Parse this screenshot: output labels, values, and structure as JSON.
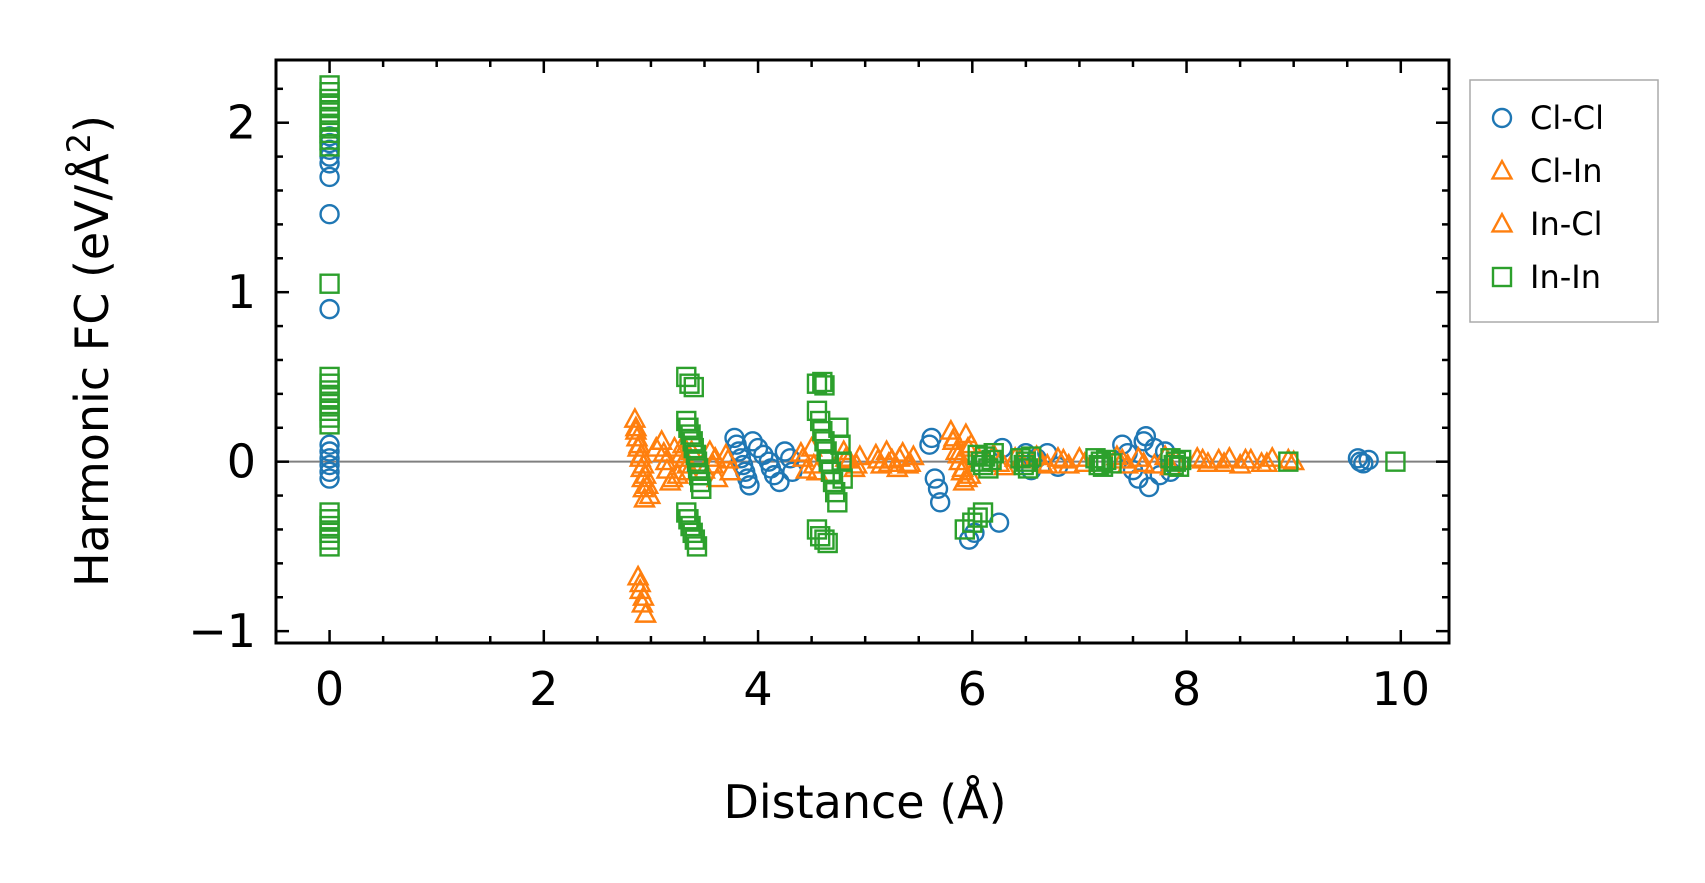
{
  "chart_data": {
    "type": "scatter",
    "title": "",
    "xlabel": "Distance (Å)",
    "ylabel_main": "Harmonic FC (eV/Å",
    "ylabel_sup": "2",
    "ylabel_close": ")",
    "xlim": [
      -0.5,
      10.45
    ],
    "ylim": [
      -1.07,
      2.37
    ],
    "xticks": [
      0,
      2,
      4,
      6,
      8,
      10
    ],
    "xtick_labels": [
      "0",
      "2",
      "4",
      "6",
      "8",
      "10"
    ],
    "yticks": [
      -1,
      0,
      1,
      2
    ],
    "ytick_labels": [
      "−1",
      "0",
      "1",
      "2"
    ],
    "zero_line": true,
    "legend_position": "outside-right-top",
    "series": [
      {
        "name": "Cl-Cl",
        "marker": "circle",
        "color": "#1f77b4",
        "points": [
          [
            0,
            1.92
          ],
          [
            0,
            1.88
          ],
          [
            0,
            1.84
          ],
          [
            0,
            1.8
          ],
          [
            0,
            1.76
          ],
          [
            0,
            1.68
          ],
          [
            0,
            1.46
          ],
          [
            0,
            0.9
          ],
          [
            0,
            0.1
          ],
          [
            0,
            0.06
          ],
          [
            0,
            0.02
          ],
          [
            0,
            -0.02
          ],
          [
            0,
            -0.06
          ],
          [
            0,
            -0.1
          ],
          [
            3.78,
            0.14
          ],
          [
            3.8,
            0.1
          ],
          [
            3.82,
            0.06
          ],
          [
            3.84,
            0.02
          ],
          [
            3.86,
            -0.02
          ],
          [
            3.88,
            -0.06
          ],
          [
            3.9,
            -0.1
          ],
          [
            3.92,
            -0.14
          ],
          [
            3.95,
            0.12
          ],
          [
            4.0,
            0.08
          ],
          [
            4.05,
            0.04
          ],
          [
            4.1,
            0.0
          ],
          [
            4.12,
            -0.04
          ],
          [
            4.15,
            -0.08
          ],
          [
            4.2,
            -0.12
          ],
          [
            4.25,
            0.06
          ],
          [
            4.3,
            0.02
          ],
          [
            4.32,
            -0.06
          ],
          [
            5.6,
            0.1
          ],
          [
            5.62,
            0.14
          ],
          [
            5.65,
            -0.1
          ],
          [
            5.68,
            -0.16
          ],
          [
            5.7,
            -0.24
          ],
          [
            5.97,
            -0.46
          ],
          [
            6.02,
            -0.42
          ],
          [
            6.25,
            -0.36
          ],
          [
            6.28,
            0.08
          ],
          [
            6.5,
            0.05
          ],
          [
            6.55,
            -0.05
          ],
          [
            6.6,
            0.02
          ],
          [
            6.7,
            0.05
          ],
          [
            6.8,
            -0.03
          ],
          [
            7.4,
            0.1
          ],
          [
            7.45,
            0.05
          ],
          [
            7.5,
            -0.05
          ],
          [
            7.55,
            -0.1
          ],
          [
            7.6,
            0.12
          ],
          [
            7.62,
            0.15
          ],
          [
            7.65,
            -0.15
          ],
          [
            7.7,
            0.08
          ],
          [
            7.75,
            -0.08
          ],
          [
            7.8,
            0.06
          ],
          [
            7.85,
            -0.06
          ],
          [
            9.6,
            0.02
          ],
          [
            9.62,
            0.0
          ],
          [
            9.65,
            -0.01
          ],
          [
            9.7,
            0.01
          ]
        ]
      },
      {
        "name": "Cl-In",
        "marker": "triangle",
        "color": "#ff7f0e",
        "points": [
          [
            2.85,
            0.25
          ],
          [
            2.86,
            0.2
          ],
          [
            2.87,
            0.14
          ],
          [
            2.88,
            0.08
          ],
          [
            2.9,
            0.02
          ],
          [
            2.91,
            -0.04
          ],
          [
            2.92,
            -0.1
          ],
          [
            2.93,
            -0.16
          ],
          [
            2.94,
            -0.22
          ],
          [
            2.88,
            -0.68
          ],
          [
            2.9,
            -0.76
          ],
          [
            2.92,
            -0.84
          ],
          [
            2.95,
            -0.9
          ],
          [
            3.1,
            0.12
          ],
          [
            3.12,
            0.05
          ],
          [
            3.15,
            -0.05
          ],
          [
            3.18,
            -0.12
          ],
          [
            3.22,
            0.08
          ],
          [
            3.25,
            -0.08
          ],
          [
            3.3,
            0.1
          ],
          [
            3.32,
            0.02
          ],
          [
            3.35,
            -0.06
          ],
          [
            3.55,
            0.06
          ],
          [
            3.58,
            -0.02
          ],
          [
            3.62,
            -0.1
          ],
          [
            3.7,
            0.04
          ],
          [
            3.74,
            -0.06
          ],
          [
            4.4,
            0.05
          ],
          [
            4.45,
            -0.05
          ],
          [
            4.5,
            0.08
          ],
          [
            4.55,
            -0.06
          ],
          [
            4.8,
            0.06
          ],
          [
            4.85,
            0.01
          ],
          [
            4.9,
            -0.04
          ],
          [
            4.95,
            0.03
          ],
          [
            5.1,
            0.04
          ],
          [
            5.15,
            -0.02
          ],
          [
            5.2,
            0.06
          ],
          [
            5.25,
            0.01
          ],
          [
            5.3,
            -0.04
          ],
          [
            5.35,
            0.05
          ],
          [
            5.4,
            -0.02
          ],
          [
            5.45,
            0.03
          ],
          [
            5.8,
            0.18
          ],
          [
            5.82,
            0.12
          ],
          [
            5.85,
            0.06
          ],
          [
            5.88,
            0.0
          ],
          [
            5.9,
            -0.06
          ],
          [
            5.92,
            -0.12
          ],
          [
            5.94,
            0.16
          ],
          [
            5.96,
            0.08
          ],
          [
            5.98,
            -0.08
          ],
          [
            6.2,
            0.04
          ],
          [
            6.3,
            -0.03
          ],
          [
            6.4,
            0.02
          ],
          [
            6.6,
            0.03
          ],
          [
            6.7,
            -0.02
          ],
          [
            6.8,
            0.02
          ],
          [
            6.9,
            -0.02
          ],
          [
            7.0,
            0.02
          ],
          [
            7.35,
            0.03
          ],
          [
            7.45,
            -0.02
          ],
          [
            7.55,
            0.02
          ],
          [
            7.7,
            -0.02
          ],
          [
            7.8,
            0.03
          ],
          [
            7.85,
            -0.03
          ],
          [
            8.1,
            0.02
          ],
          [
            8.2,
            -0.01
          ],
          [
            8.3,
            0.01
          ],
          [
            8.4,
            0.02
          ],
          [
            8.5,
            -0.02
          ],
          [
            8.6,
            0.01
          ],
          [
            8.7,
            -0.01
          ],
          [
            8.8,
            0.02
          ],
          [
            9.0,
            0.0
          ]
        ]
      },
      {
        "name": "In-Cl",
        "marker": "triangle",
        "color": "#ff7f0e",
        "points": [
          [
            2.86,
            0.18
          ],
          [
            2.89,
            0.1
          ],
          [
            2.91,
            0.04
          ],
          [
            2.93,
            -0.02
          ],
          [
            2.95,
            -0.08
          ],
          [
            2.97,
            -0.14
          ],
          [
            2.99,
            -0.2
          ],
          [
            2.9,
            -0.72
          ],
          [
            2.93,
            -0.8
          ],
          [
            3.05,
            0.08
          ],
          [
            3.14,
            0.0
          ],
          [
            3.2,
            -0.1
          ],
          [
            3.28,
            0.04
          ],
          [
            3.34,
            -0.02
          ],
          [
            3.38,
            0.06
          ],
          [
            3.5,
            -0.05
          ],
          [
            3.6,
            0.02
          ],
          [
            3.72,
            0.01
          ],
          [
            4.42,
            0.02
          ],
          [
            4.52,
            -0.02
          ],
          [
            4.82,
            0.02
          ],
          [
            4.92,
            -0.02
          ],
          [
            5.12,
            0.01
          ],
          [
            5.22,
            -0.01
          ],
          [
            5.32,
            0.02
          ],
          [
            5.42,
            -0.01
          ],
          [
            5.83,
            0.14
          ],
          [
            5.87,
            0.04
          ],
          [
            5.91,
            -0.04
          ],
          [
            5.95,
            -0.1
          ],
          [
            5.99,
            0.1
          ],
          [
            6.25,
            -0.01
          ],
          [
            6.45,
            0.01
          ],
          [
            6.65,
            -0.01
          ],
          [
            6.85,
            0.01
          ],
          [
            7.05,
            -0.01
          ],
          [
            7.4,
            0.01
          ],
          [
            7.6,
            -0.01
          ],
          [
            7.9,
            0.01
          ],
          [
            8.15,
            0.01
          ],
          [
            8.35,
            -0.01
          ],
          [
            8.55,
            0.01
          ],
          [
            8.75,
            -0.01
          ],
          [
            8.95,
            0.01
          ]
        ]
      },
      {
        "name": "In-In",
        "marker": "square",
        "color": "#2ca02c",
        "points": [
          [
            0,
            2.22
          ],
          [
            0,
            2.18
          ],
          [
            0,
            2.14
          ],
          [
            0,
            2.1
          ],
          [
            0,
            2.06
          ],
          [
            0,
            2.02
          ],
          [
            0,
            1.98
          ],
          [
            0,
            1.94
          ],
          [
            0,
            1.9
          ],
          [
            0,
            1.86
          ],
          [
            0,
            1.05
          ],
          [
            0,
            0.5
          ],
          [
            0,
            0.46
          ],
          [
            0,
            0.42
          ],
          [
            0,
            0.38
          ],
          [
            0,
            0.34
          ],
          [
            0,
            0.3
          ],
          [
            0,
            0.26
          ],
          [
            0,
            0.22
          ],
          [
            0,
            -0.3
          ],
          [
            0,
            -0.34
          ],
          [
            0,
            -0.38
          ],
          [
            0,
            -0.42
          ],
          [
            0,
            -0.46
          ],
          [
            0,
            -0.5
          ],
          [
            3.33,
            0.5
          ],
          [
            3.36,
            0.46
          ],
          [
            3.4,
            0.44
          ],
          [
            3.33,
            0.24
          ],
          [
            3.35,
            0.2
          ],
          [
            3.37,
            0.16
          ],
          [
            3.39,
            0.12
          ],
          [
            3.4,
            0.08
          ],
          [
            3.42,
            0.04
          ],
          [
            3.43,
            0.0
          ],
          [
            3.44,
            -0.04
          ],
          [
            3.45,
            -0.08
          ],
          [
            3.46,
            -0.12
          ],
          [
            3.47,
            -0.16
          ],
          [
            3.33,
            -0.3
          ],
          [
            3.35,
            -0.34
          ],
          [
            3.37,
            -0.38
          ],
          [
            3.39,
            -0.42
          ],
          [
            3.41,
            -0.46
          ],
          [
            3.43,
            -0.5
          ],
          [
            4.55,
            0.46
          ],
          [
            4.6,
            0.47
          ],
          [
            4.62,
            0.45
          ],
          [
            4.55,
            0.3
          ],
          [
            4.58,
            0.24
          ],
          [
            4.6,
            0.18
          ],
          [
            4.62,
            0.12
          ],
          [
            4.64,
            0.06
          ],
          [
            4.66,
            0.0
          ],
          [
            4.68,
            -0.06
          ],
          [
            4.7,
            -0.12
          ],
          [
            4.72,
            -0.18
          ],
          [
            4.74,
            -0.24
          ],
          [
            4.55,
            -0.4
          ],
          [
            4.58,
            -0.44
          ],
          [
            4.62,
            -0.46
          ],
          [
            4.65,
            -0.48
          ],
          [
            4.75,
            0.2
          ],
          [
            4.77,
            0.1
          ],
          [
            4.78,
            0.0
          ],
          [
            4.79,
            -0.1
          ],
          [
            5.93,
            -0.4
          ],
          [
            6.0,
            -0.36
          ],
          [
            6.05,
            -0.33
          ],
          [
            6.1,
            -0.3
          ],
          [
            6.05,
            0.04
          ],
          [
            6.08,
            0.0
          ],
          [
            6.1,
            -0.02
          ],
          [
            6.12,
            0.03
          ],
          [
            6.15,
            -0.04
          ],
          [
            6.18,
            0.01
          ],
          [
            6.2,
            0.05
          ],
          [
            6.45,
            0.02
          ],
          [
            6.48,
            -0.02
          ],
          [
            6.5,
            0.0
          ],
          [
            6.52,
            -0.04
          ],
          [
            6.55,
            0.03
          ],
          [
            7.15,
            0.02
          ],
          [
            7.18,
            -0.02
          ],
          [
            7.2,
            0.0
          ],
          [
            7.22,
            -0.03
          ],
          [
            7.25,
            0.01
          ],
          [
            7.3,
            -0.01
          ],
          [
            7.85,
            0.02
          ],
          [
            7.88,
            -0.02
          ],
          [
            7.9,
            0.0
          ],
          [
            7.93,
            -0.03
          ],
          [
            7.95,
            0.01
          ],
          [
            8.95,
            0.0
          ],
          [
            9.95,
            0.0
          ]
        ]
      }
    ]
  }
}
